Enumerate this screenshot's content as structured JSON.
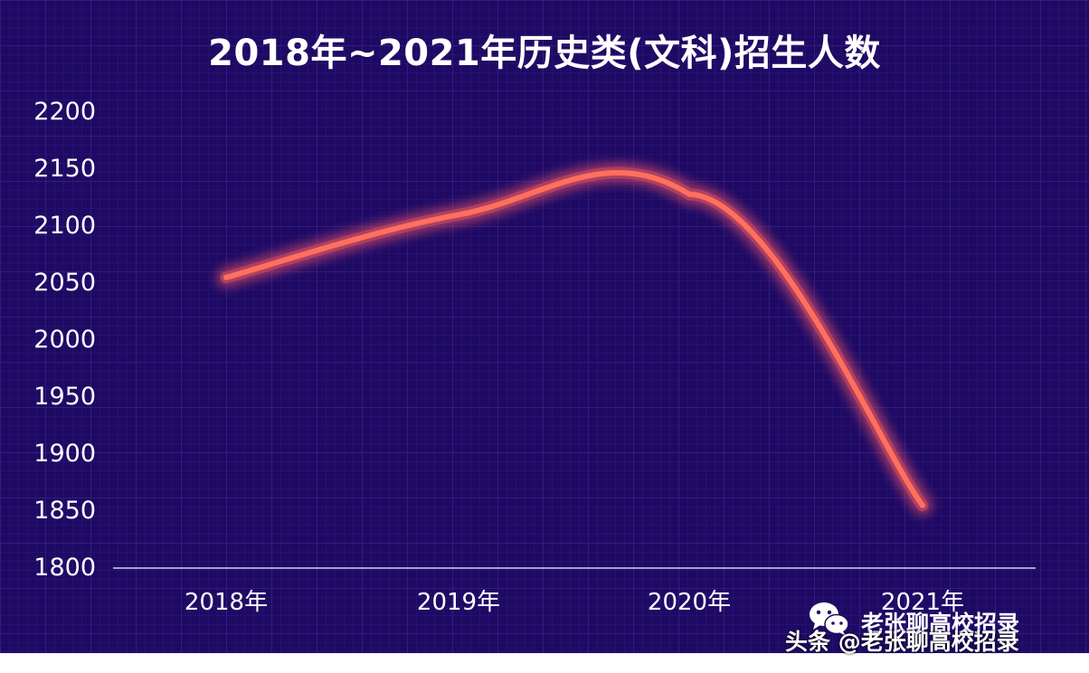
{
  "colors": {
    "background": "#1e0a63",
    "grid": "#3a1f8c",
    "line": "#ff6f5e",
    "line_glow": "#e0506a",
    "text": "#ffffff"
  },
  "chart_data": {
    "type": "line",
    "title": "2018年~2021年历史类(文科)招生人数",
    "categories": [
      "2018年",
      "2019年",
      "2020年",
      "2021年"
    ],
    "series": [
      {
        "values": [
          2055,
          2110,
          2128,
          1855
        ]
      }
    ],
    "ylim": [
      1800,
      2200
    ],
    "yticks": [
      "2200",
      "2150",
      "2100",
      "2050",
      "2000",
      "1950",
      "1900",
      "1850",
      "1800"
    ],
    "xlabel": "",
    "ylabel": "",
    "grid": true,
    "legend": "none",
    "smooth": true
  },
  "watermark": {
    "icon": "wechat-icon",
    "account": "老张聊高校招录",
    "platform_line": "头条 @老张聊高校招录"
  }
}
